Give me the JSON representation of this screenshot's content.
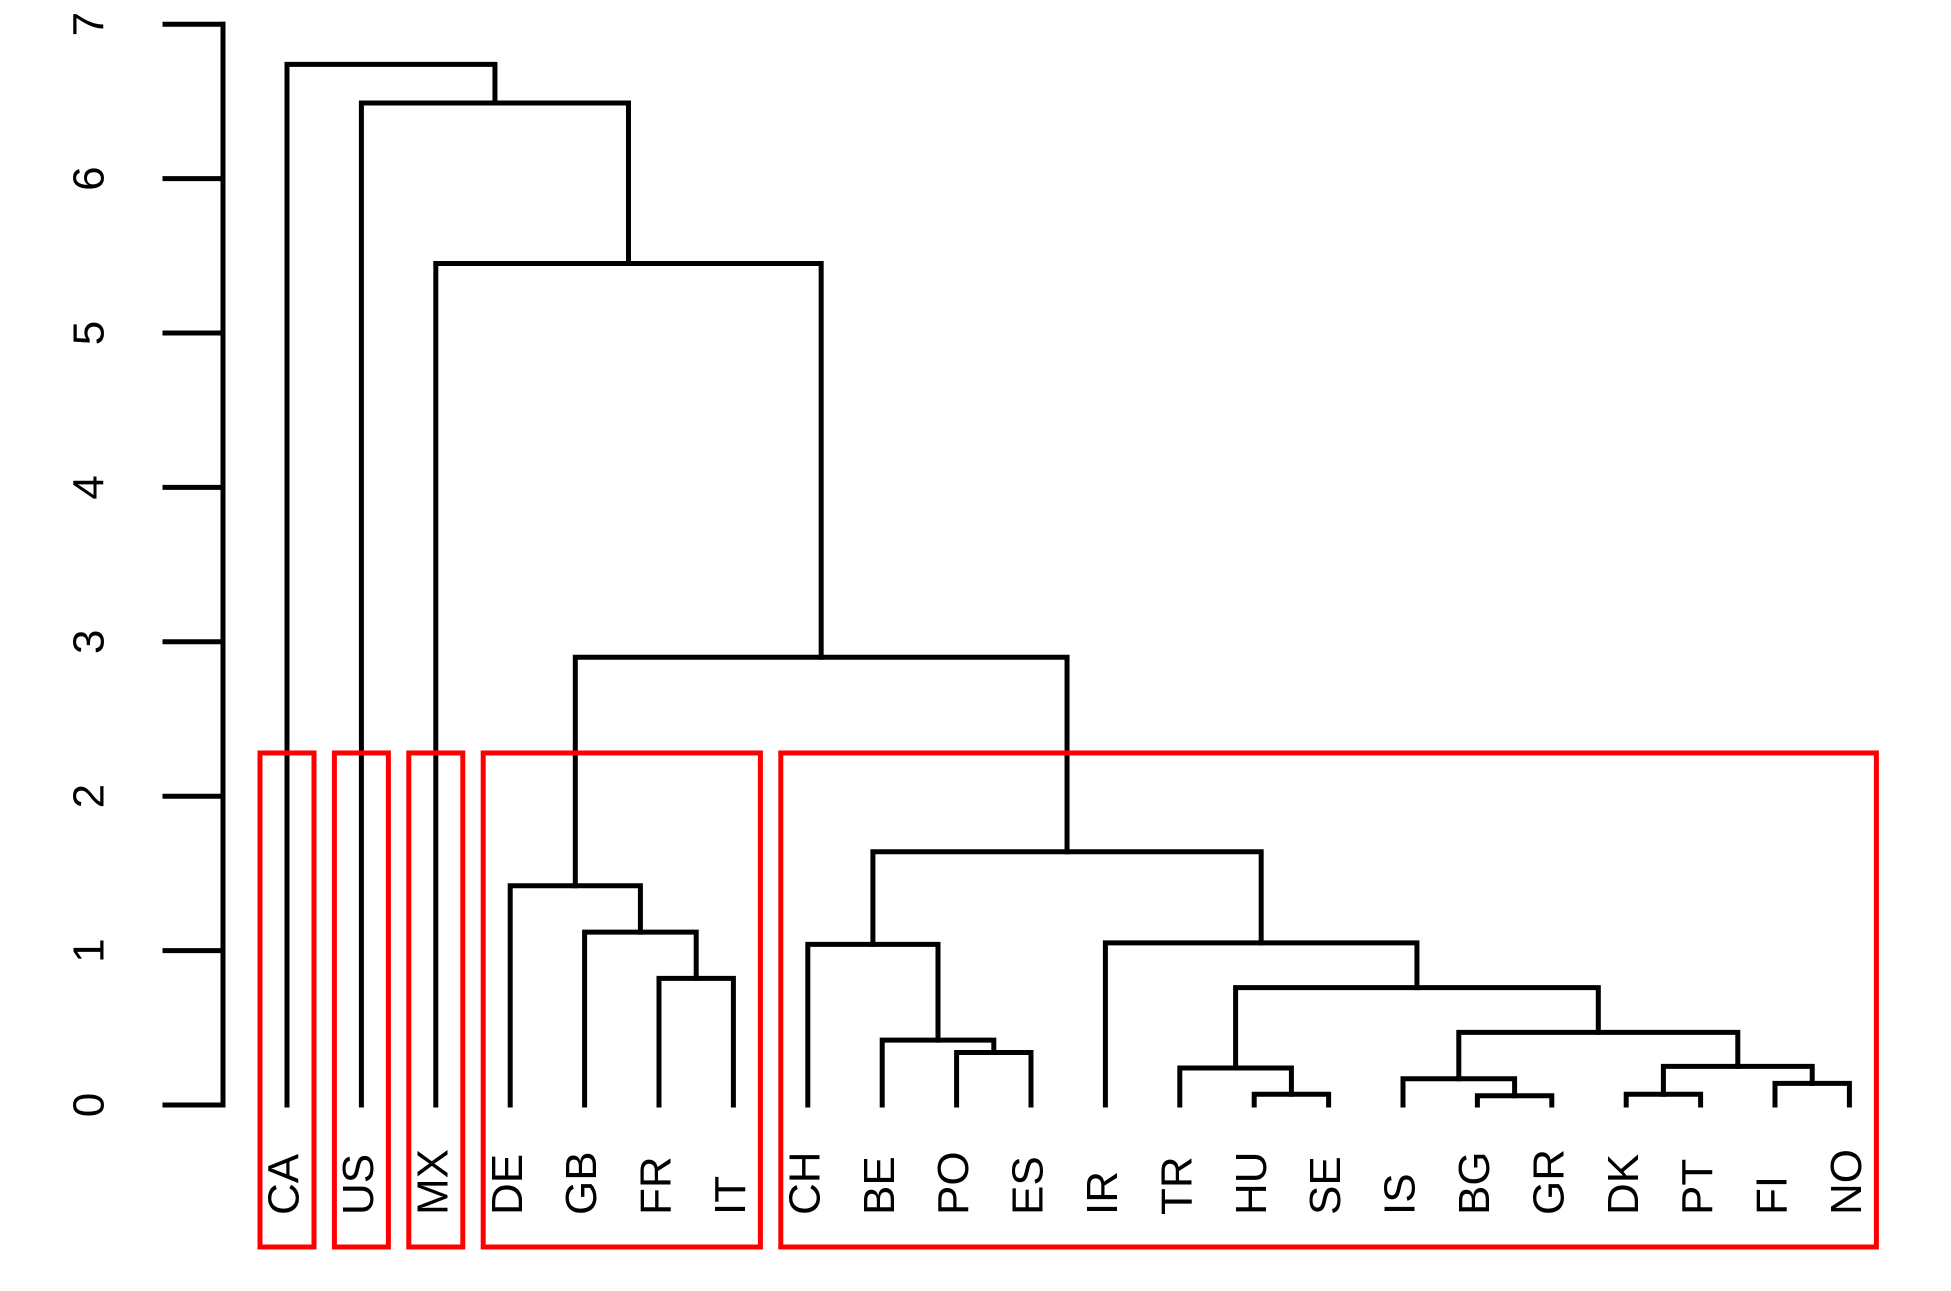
{
  "chart_data": {
    "type": "dendrogram",
    "title": "",
    "xlabel": "",
    "ylabel": "",
    "ylim": [
      0,
      7
    ],
    "y_ticks": [
      "0",
      "1",
      "2",
      "3",
      "4",
      "5",
      "6",
      "7"
    ],
    "leaves": [
      "CA",
      "US",
      "MX",
      "DE",
      "GB",
      "FR",
      "IT",
      "CH",
      "BE",
      "PO",
      "ES",
      "IR",
      "TR",
      "HU",
      "SE",
      "IS",
      "BG",
      "GR",
      "DK",
      "PT",
      "FI",
      "NO"
    ],
    "merges": [
      {
        "id": "m1",
        "left": "BG",
        "right": "GR",
        "height": 0.06
      },
      {
        "id": "m2",
        "left": "HU",
        "right": "SE",
        "height": 0.07
      },
      {
        "id": "m3",
        "left": "DK",
        "right": "PT",
        "height": 0.07
      },
      {
        "id": "m4",
        "left": "FI",
        "right": "NO",
        "height": 0.14
      },
      {
        "id": "m5",
        "left": "IS",
        "right": "m1",
        "height": 0.17
      },
      {
        "id": "m6",
        "left": "TR",
        "right": "m2",
        "height": 0.24
      },
      {
        "id": "m7",
        "left": "m3",
        "right": "m4",
        "height": 0.25
      },
      {
        "id": "m8",
        "left": "PO",
        "right": "ES",
        "height": 0.34
      },
      {
        "id": "m9",
        "left": "BE",
        "right": "m8",
        "height": 0.42
      },
      {
        "id": "m10",
        "left": "m5",
        "right": "m7",
        "height": 0.47
      },
      {
        "id": "m11",
        "left": "m6",
        "right": "m10",
        "height": 0.76
      },
      {
        "id": "m12",
        "left": "FR",
        "right": "IT",
        "height": 0.82
      },
      {
        "id": "m13",
        "left": "CH",
        "right": "m9",
        "height": 1.04
      },
      {
        "id": "m14",
        "left": "IR",
        "right": "m11",
        "height": 1.05
      },
      {
        "id": "m15",
        "left": "GB",
        "right": "m12",
        "height": 1.12
      },
      {
        "id": "m16",
        "left": "DE",
        "right": "m15",
        "height": 1.42
      },
      {
        "id": "m17",
        "left": "m13",
        "right": "m14",
        "height": 1.64
      },
      {
        "id": "m18",
        "left": "m16",
        "right": "m17",
        "height": 2.9
      },
      {
        "id": "m19",
        "left": "MX",
        "right": "m18",
        "height": 5.45
      },
      {
        "id": "m20",
        "left": "US",
        "right": "m19",
        "height": 6.49
      },
      {
        "id": "m21",
        "left": "CA",
        "right": "m20",
        "height": 6.74
      }
    ],
    "clusters": [
      {
        "first": "CA",
        "last": "CA"
      },
      {
        "first": "US",
        "last": "US"
      },
      {
        "first": "MX",
        "last": "MX"
      },
      {
        "first": "DE",
        "last": "IT"
      },
      {
        "first": "CH",
        "last": "NO"
      }
    ],
    "cluster_cut_height": 2.28,
    "colors": {
      "branches": "#000000",
      "clusters": "#ff0000"
    }
  }
}
